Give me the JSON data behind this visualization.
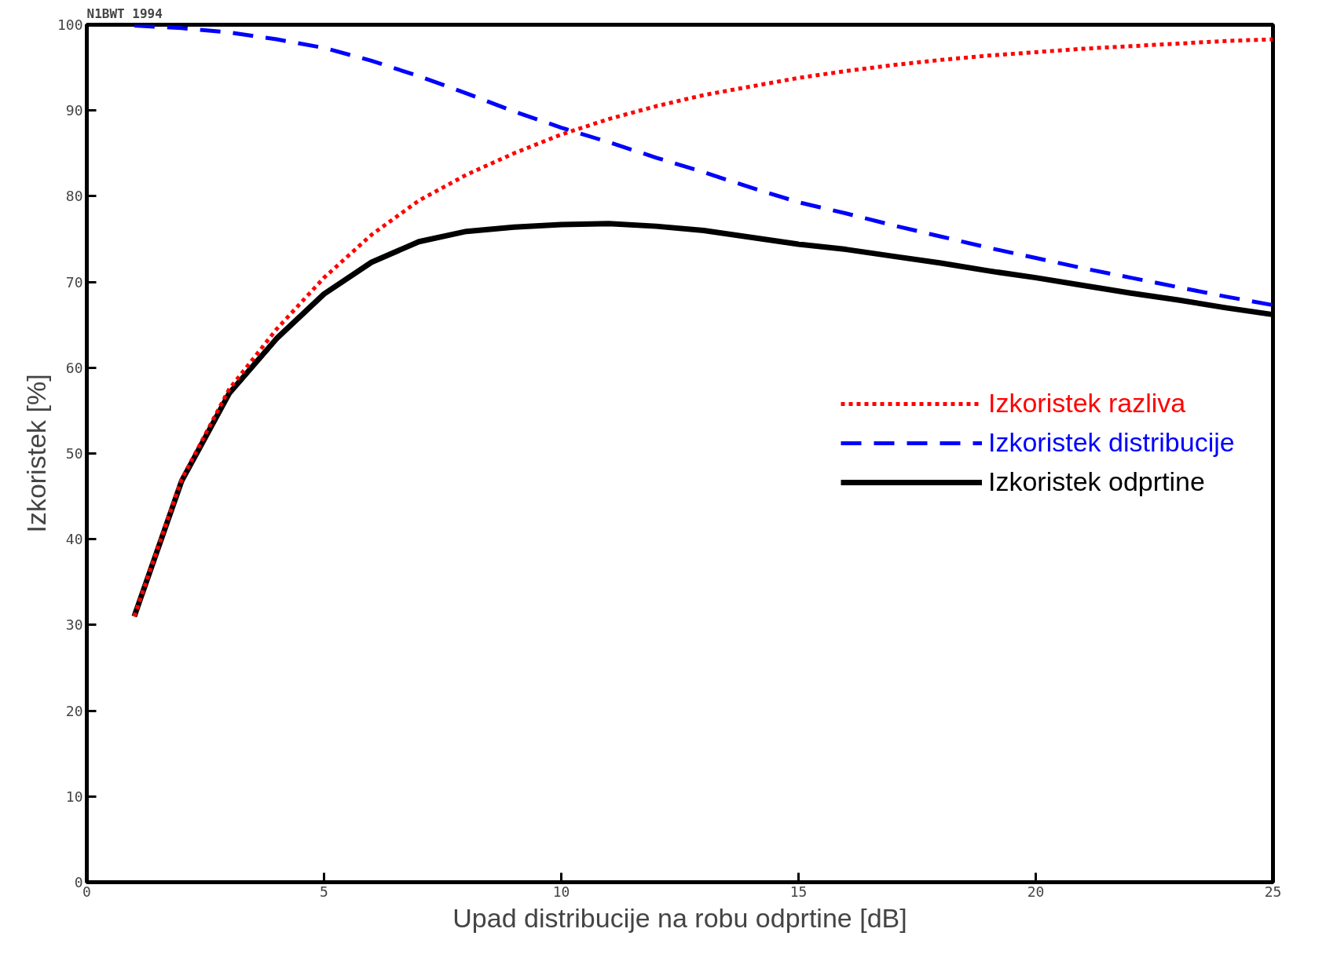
{
  "chart_data": {
    "type": "line",
    "xlabel": "Upad distribucije na robu odprtine [dB]",
    "ylabel": "Izkoristek [%]",
    "annotations": [
      "N1BWT 1994"
    ],
    "x": [
      1,
      2,
      3,
      4,
      5,
      6,
      7,
      8,
      9,
      10,
      11,
      12,
      13,
      14,
      15,
      16,
      17,
      18,
      19,
      20,
      21,
      22,
      23,
      24,
      25
    ],
    "series": [
      {
        "name": "Izkoristek razliva",
        "color": "#ff0000",
        "line_style": "dotted",
        "values": [
          31,
          47,
          57.5,
          64.5,
          70.5,
          75.5,
          79.5,
          82.5,
          85,
          87.2,
          89,
          90.5,
          91.8,
          92.8,
          93.8,
          94.6,
          95.3,
          95.9,
          96.4,
          96.8,
          97.2,
          97.5,
          97.8,
          98.1,
          98.3
        ]
      },
      {
        "name": "Izkoristek distribucije",
        "color": "#0000ff",
        "line_style": "dashed",
        "values": [
          99.9,
          99.6,
          99.1,
          98.3,
          97.3,
          95.8,
          94,
          92,
          89.9,
          88,
          86.3,
          84.5,
          82.8,
          81,
          79.3,
          78,
          76.6,
          75.3,
          74,
          72.8,
          71.6,
          70.5,
          69.4,
          68.3,
          67.3
        ]
      },
      {
        "name": "Izkoristek odprtine",
        "color": "#000000",
        "line_style": "solid",
        "values": [
          31,
          46.8,
          57,
          63.4,
          68.6,
          72.3,
          74.7,
          75.9,
          76.4,
          76.7,
          76.8,
          76.5,
          76,
          75.2,
          74.4,
          73.8,
          73,
          72.2,
          71.3,
          70.5,
          69.6,
          68.7,
          67.9,
          67,
          66.2
        ]
      }
    ],
    "xlim": [
      0,
      25
    ],
    "xticks": [
      0,
      5,
      10,
      15,
      20,
      25
    ],
    "ylim": [
      0,
      100
    ],
    "yticks": [
      0,
      10,
      20,
      30,
      40,
      50,
      60,
      70,
      80,
      90,
      100
    ],
    "grid": false,
    "legend": "right"
  }
}
